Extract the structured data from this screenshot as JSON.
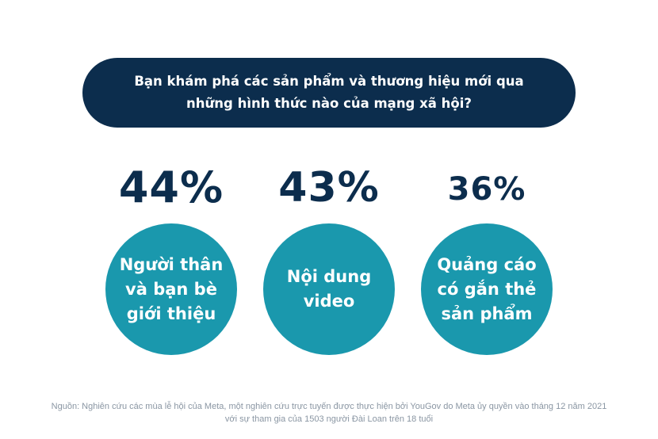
{
  "question": "Bạn khám phá các sản phẩm và thương hiệu mới qua những hình thức nào của mạng xã hội?",
  "colors": {
    "navy": "#0c2d4d",
    "teal": "#1a98ad",
    "source_gray": "#8a96a3"
  },
  "chart_data": {
    "type": "bar",
    "title": "Bạn khám phá các sản phẩm và thương hiệu mới qua những hình thức nào của mạng xã hội?",
    "categories": [
      "Người thân và bạn bè giới thiệu",
      "Nội dung video",
      "Quảng cáo có gắn thẻ sản phẩm"
    ],
    "values": [
      44,
      43,
      36
    ],
    "value_labels": [
      "44%",
      "43%",
      "36%"
    ],
    "unit": "%"
  },
  "items": [
    {
      "value": "44%",
      "label": "Người thân\nvà bạn bè\ngiới thiệu"
    },
    {
      "value": "43%",
      "label": "Nội dung\nvideo"
    },
    {
      "value": "36%",
      "label": "Quảng cáo\ncó gắn thẻ\nsản phẩm"
    }
  ],
  "source": "Nguồn: Nghiên cứu các mùa lễ hội của Meta, một nghiên cứu trực tuyến được thực hiện bởi YouGov do Meta ủy quyền vào tháng 12 năm 2021 với sự tham gia của 1503 người Đài Loan trên 18 tuổi"
}
